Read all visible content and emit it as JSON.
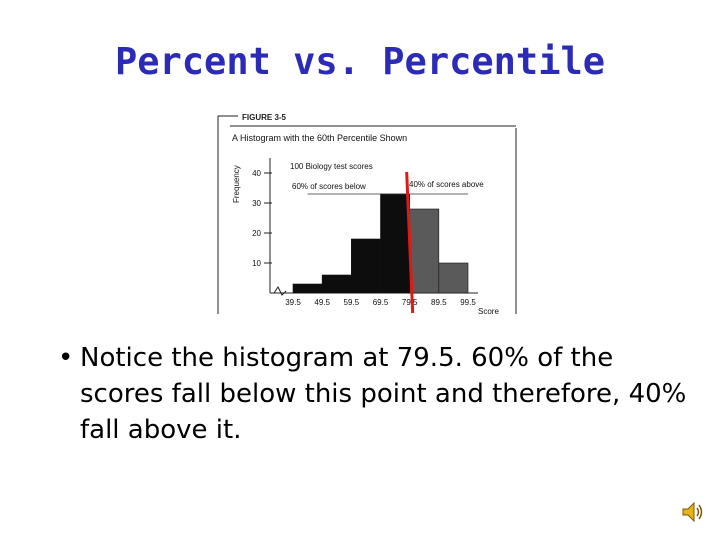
{
  "slide": {
    "title": "Percent vs. Percentile",
    "bullet_marker": "•",
    "bullet_text": "Notice the histogram at 79.5.  60% of the scores fall below this point and therefore, 40% fall above it."
  },
  "colors": {
    "title": "#2b2bb8",
    "bar_dark": "#0d0d0d",
    "bar_light": "#5a5a5a",
    "percentile_line": "#e01818",
    "speaker": "#e8b21a"
  },
  "icons": {
    "speaker": "speaker-icon"
  },
  "chart_data": {
    "type": "bar",
    "figure_label": "FIGURE 3-5",
    "title": "A Histogram with the 60th Percentile Shown",
    "annotation": "100 Biology test scores",
    "below_label": "60% of scores below",
    "above_label": "40% of scores above",
    "ylabel": "Frequency",
    "xlabel": "Score",
    "y_ticks": [
      "10",
      "20",
      "30",
      "40"
    ],
    "x_ticks": [
      "39.5",
      "49.5",
      "59.5",
      "69.5",
      "79.5",
      "89.5",
      "99.5"
    ],
    "bins": [
      {
        "start": 39.5,
        "end": 49.5,
        "value": 3
      },
      {
        "start": 49.5,
        "end": 59.5,
        "value": 6
      },
      {
        "start": 59.5,
        "end": 69.5,
        "value": 18
      },
      {
        "start": 69.5,
        "end": 79.5,
        "value": 33
      },
      {
        "start": 79.5,
        "end": 89.5,
        "value": 28
      },
      {
        "start": 89.5,
        "end": 99.5,
        "value": 10
      }
    ],
    "percentile_marker": 79.5,
    "percentile": 60,
    "xlim": [
      39.5,
      99.5
    ],
    "ylim": [
      0,
      45
    ]
  }
}
